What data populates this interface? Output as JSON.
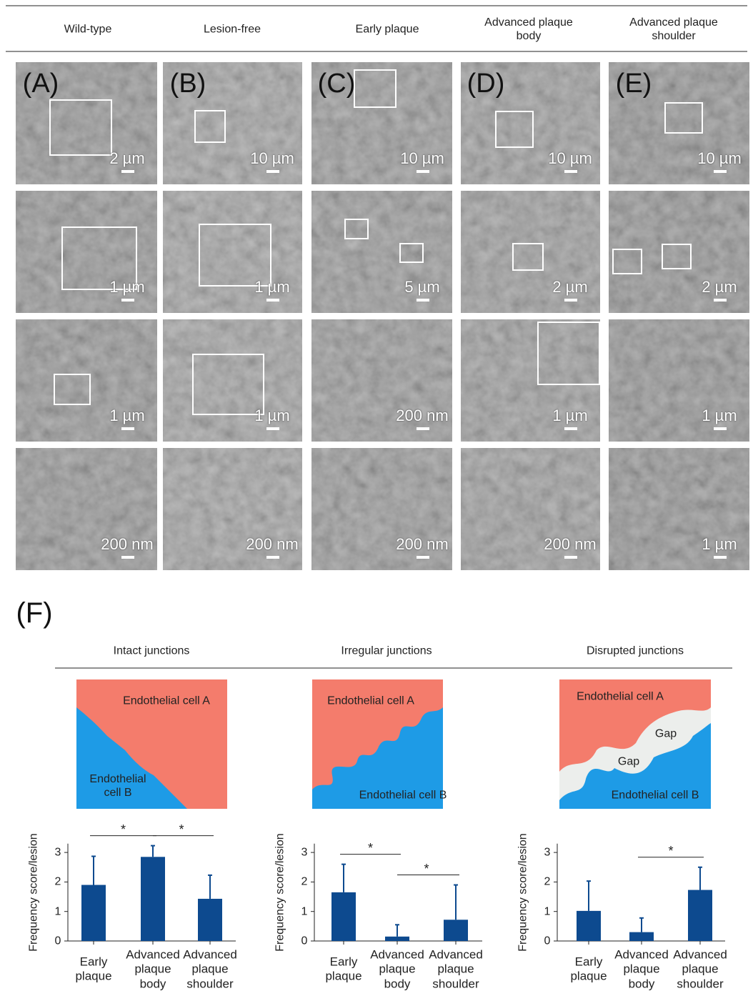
{
  "header": {
    "columns": [
      "Wild-type",
      "Lesion-free",
      "Early plaque",
      "Advanced plaque body",
      "Advanced plaque shoulder"
    ]
  },
  "panels": {
    "letters": [
      "(A)",
      "(B)",
      "(C)",
      "(D)",
      "(E)"
    ],
    "scale_bars": [
      [
        "2 µm",
        "10 µm",
        "10 µm",
        "10 µm",
        "10 µm"
      ],
      [
        "1 µm",
        "1 µm",
        "5 µm",
        "2 µm",
        "2 µm"
      ],
      [
        "1 µm",
        "1 µm",
        "200 nm",
        "1 µm",
        "1 µm"
      ],
      [
        "200 nm",
        "200 nm",
        "200 nm",
        "200 nm",
        "1 µm"
      ]
    ]
  },
  "panel_f": {
    "letter": "(F)",
    "columns": [
      {
        "title": "Intact junctions",
        "labels": [
          "Endothelial cell A",
          "Endothelial cell B"
        ]
      },
      {
        "title": "Irregular junctions",
        "labels": [
          "Endothelial cell A",
          "Endothelial cell B"
        ]
      },
      {
        "title": "Disrupted junctions",
        "labels": [
          "Endothelial cell A",
          "Endothelial cell B",
          "Gap",
          "Gap"
        ]
      }
    ]
  },
  "chart_data": [
    {
      "type": "bar",
      "ylabel": "Frequency score/lesion",
      "categories": [
        "Early plaque",
        "Advanced plaque body",
        "Advanced plaque shoulder"
      ],
      "values": [
        1.9,
        2.85,
        1.43
      ],
      "errors": [
        0.97,
        0.38,
        0.8
      ],
      "color": "#0d4a8f",
      "ylim": [
        0,
        3.3
      ],
      "yticks": [
        0,
        1,
        2,
        3
      ],
      "annotations": [
        {
          "text": "*",
          "between": [
            "Early plaque",
            "Advanced plaque body"
          ]
        },
        {
          "text": "*",
          "between": [
            "Advanced plaque body",
            "Advanced plaque shoulder"
          ]
        }
      ]
    },
    {
      "type": "bar",
      "ylabel": "Frequency score/lesion",
      "categories": [
        "Early plaque",
        "Advanced plaque body",
        "Advanced plaque shoulder"
      ],
      "values": [
        1.65,
        0.15,
        0.72
      ],
      "errors": [
        0.95,
        0.4,
        1.18
      ],
      "color": "#0d4a8f",
      "ylim": [
        0,
        3.3
      ],
      "yticks": [
        0,
        1,
        2,
        3
      ],
      "annotations": [
        {
          "text": "*",
          "between": [
            "Early plaque",
            "Advanced plaque body"
          ]
        },
        {
          "text": "*",
          "between": [
            "Advanced plaque body",
            "Advanced plaque shoulder"
          ]
        }
      ]
    },
    {
      "type": "bar",
      "ylabel": "Frequency score/lesion",
      "categories": [
        "Early plaque",
        "Advanced plaque body",
        "Advanced plaque shoulder"
      ],
      "values": [
        1.02,
        0.3,
        1.73
      ],
      "errors": [
        1.01,
        0.48,
        0.77
      ],
      "color": "#0d4a8f",
      "ylim": [
        0,
        3.3
      ],
      "yticks": [
        0,
        1,
        2,
        3
      ],
      "annotations": [
        {
          "text": "*",
          "between": [
            "Advanced plaque body",
            "Advanced plaque shoulder"
          ]
        }
      ]
    }
  ]
}
